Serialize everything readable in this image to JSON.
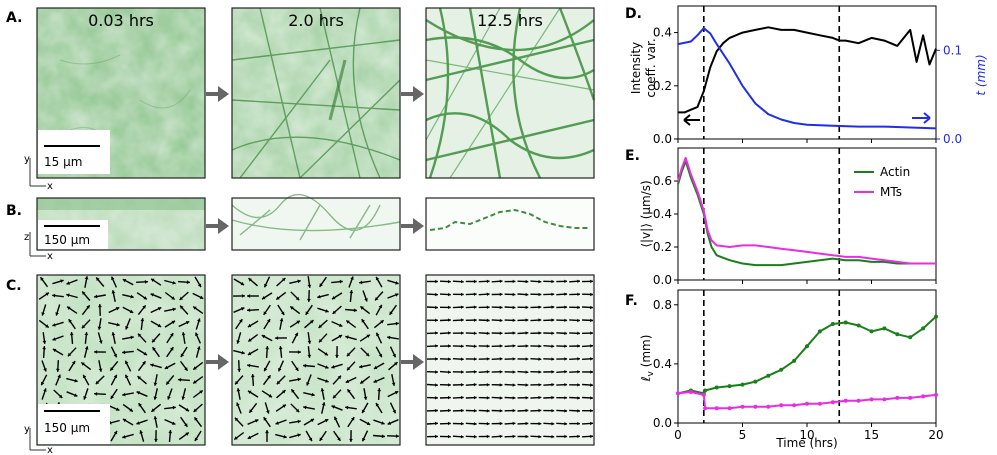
{
  "colors": {
    "actin": "#1a7f1a",
    "mts": "#e52ee5",
    "blue": "#1f2fe6",
    "black": "#000000",
    "arrow": "#666666"
  },
  "labels": {
    "A": "A.",
    "B": "B.",
    "C": "C.",
    "D": "D.",
    "E": "E.",
    "F": "F."
  },
  "panel_A": {
    "times": [
      "0.03 hrs",
      "2.0 hrs",
      "12.5 hrs"
    ],
    "scalebar": "15 µm",
    "axis_y": "y",
    "axis_x": "x"
  },
  "panel_B": {
    "scalebar": "150 µm",
    "axis_y": "z",
    "axis_x": "x"
  },
  "panel_C": {
    "scalebar": "150 µm",
    "axis_y": "y",
    "axis_x": "x"
  },
  "chart_data": [
    {
      "panel": "D",
      "type": "line",
      "ylabel": [
        "Intensity",
        "coeff. var."
      ],
      "ylabel_right": "t (mm)",
      "xlim": [
        0,
        20
      ],
      "ylim": [
        0,
        0.5
      ],
      "ylim_right": [
        0,
        0.15
      ],
      "yticks": [
        "0.0",
        "0.2",
        "0.4"
      ],
      "yticks_right": [
        "0.0",
        "0.1"
      ],
      "vlines": [
        2.0,
        12.5
      ],
      "series": [
        {
          "id": "intensity",
          "axis": "left",
          "color": "#000000",
          "x": [
            0,
            0.5,
            1,
            1.5,
            2,
            2.5,
            3,
            3.5,
            4,
            5,
            6,
            7,
            8,
            9,
            10,
            11,
            12,
            12.5,
            13,
            14,
            15,
            16,
            17,
            18,
            18.5,
            19,
            19.5,
            20
          ],
          "y": [
            0.1,
            0.1,
            0.11,
            0.12,
            0.18,
            0.27,
            0.33,
            0.36,
            0.38,
            0.4,
            0.41,
            0.42,
            0.41,
            0.41,
            0.4,
            0.39,
            0.38,
            0.37,
            0.37,
            0.36,
            0.38,
            0.37,
            0.35,
            0.41,
            0.29,
            0.39,
            0.28,
            0.34
          ]
        },
        {
          "id": "thickness",
          "axis": "right",
          "color": "#1f2fe6",
          "x": [
            0,
            1,
            1.5,
            2,
            2.5,
            3,
            4,
            5,
            6,
            7,
            8,
            9,
            10,
            12,
            14,
            16,
            18,
            20
          ],
          "y": [
            0.107,
            0.11,
            0.117,
            0.125,
            0.119,
            0.107,
            0.085,
            0.06,
            0.04,
            0.028,
            0.022,
            0.018,
            0.016,
            0.015,
            0.014,
            0.014,
            0.013,
            0.012
          ]
        }
      ]
    },
    {
      "panel": "E",
      "type": "line",
      "ylabel": "⟨|v|⟩ (µm/s)",
      "xlim": [
        0,
        20
      ],
      "ylim": [
        0,
        0.8
      ],
      "yticks": [
        "0.0",
        "0.2",
        "0.4",
        "0.6"
      ],
      "vlines": [
        2.0,
        12.5
      ],
      "legend": {
        "position": "top-right"
      },
      "series": [
        {
          "id": "actin",
          "name": "Actin",
          "color": "#1a7f1a",
          "x": [
            0,
            0.3,
            0.6,
            1,
            1.5,
            2,
            2.3,
            2.6,
            3,
            4,
            5,
            6,
            7,
            8,
            9,
            10,
            11,
            12,
            13,
            14,
            15,
            16,
            17,
            18,
            19,
            20
          ],
          "y": [
            0.58,
            0.66,
            0.72,
            0.62,
            0.52,
            0.4,
            0.28,
            0.2,
            0.15,
            0.12,
            0.1,
            0.09,
            0.09,
            0.09,
            0.1,
            0.11,
            0.12,
            0.13,
            0.12,
            0.12,
            0.11,
            0.11,
            0.1,
            0.1,
            0.1,
            0.1
          ]
        },
        {
          "id": "mts",
          "name": "MTs",
          "color": "#e52ee5",
          "x": [
            0,
            0.3,
            0.6,
            1,
            1.5,
            2,
            2.3,
            2.6,
            3,
            4,
            5,
            6,
            7,
            8,
            9,
            10,
            11,
            12,
            13,
            14,
            15,
            16,
            17,
            18,
            19,
            20
          ],
          "y": [
            0.6,
            0.68,
            0.74,
            0.64,
            0.54,
            0.42,
            0.3,
            0.24,
            0.21,
            0.2,
            0.21,
            0.21,
            0.2,
            0.19,
            0.18,
            0.17,
            0.16,
            0.15,
            0.14,
            0.14,
            0.13,
            0.12,
            0.11,
            0.1,
            0.1,
            0.1
          ]
        }
      ]
    },
    {
      "panel": "F",
      "type": "line",
      "ylabel": "ℓ_v (mm)",
      "xlabel": "Time (hrs)",
      "xlim": [
        0,
        20
      ],
      "ylim": [
        0,
        0.9
      ],
      "xticks": [
        "0",
        "5",
        "10",
        "15",
        "20"
      ],
      "yticks": [
        "0.0",
        "0.4",
        "0.8"
      ],
      "vlines": [
        2.0,
        12.5
      ],
      "series": [
        {
          "id": "actin",
          "name": "Actin",
          "color": "#1a7f1a",
          "x": [
            0,
            1,
            2,
            2.1,
            3,
            4,
            5,
            6,
            7,
            8,
            9,
            10,
            11,
            12,
            13,
            14,
            15,
            16,
            17,
            18,
            19,
            20
          ],
          "y": [
            0.2,
            0.22,
            0.2,
            0.22,
            0.24,
            0.25,
            0.26,
            0.28,
            0.32,
            0.36,
            0.42,
            0.52,
            0.62,
            0.67,
            0.68,
            0.66,
            0.62,
            0.64,
            0.6,
            0.58,
            0.64,
            0.72
          ]
        },
        {
          "id": "mts",
          "name": "MTs",
          "color": "#e52ee5",
          "x": [
            0,
            1,
            2,
            2.1,
            3,
            4,
            5,
            6,
            7,
            8,
            9,
            10,
            11,
            12,
            13,
            14,
            15,
            16,
            17,
            18,
            19,
            20
          ],
          "y": [
            0.2,
            0.21,
            0.19,
            0.1,
            0.1,
            0.1,
            0.11,
            0.11,
            0.11,
            0.12,
            0.12,
            0.13,
            0.13,
            0.14,
            0.15,
            0.15,
            0.16,
            0.16,
            0.17,
            0.17,
            0.18,
            0.19
          ]
        }
      ]
    }
  ]
}
